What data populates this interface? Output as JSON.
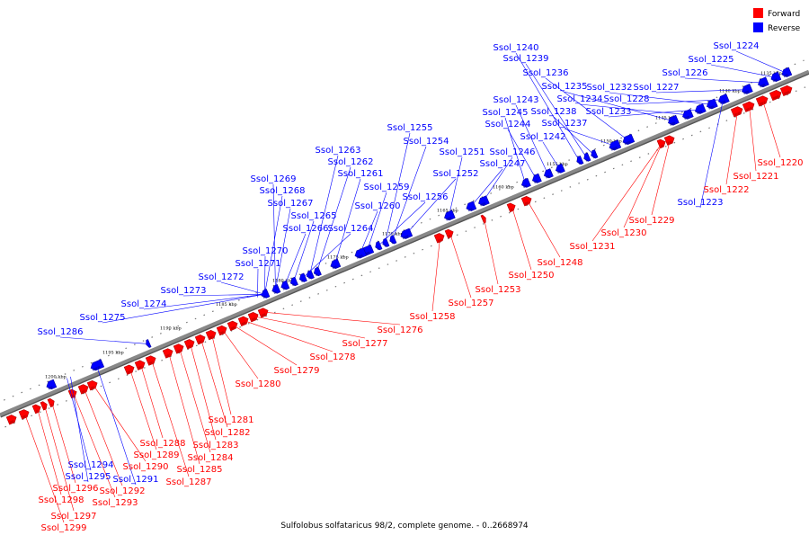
{
  "legend": {
    "forward": {
      "label": "Forward",
      "color": "#ff0000"
    },
    "reverse": {
      "label": "Reverse",
      "color": "#0000ff"
    }
  },
  "caption": "Sulfolobus solfataricus 98/2, complete genome. - 0..2668974",
  "colors": {
    "forward": "#ff0000",
    "forward_dark": "#b00000",
    "reverse": "#0000ff",
    "reverse_dark": "#0000a0",
    "backbone": "#888888",
    "backbone_dark": "#555555"
  },
  "ticks": [
    {
      "label": "1135 kbp"
    },
    {
      "label": "1140 kbp"
    },
    {
      "label": "1145 kbp"
    },
    {
      "label": "1150 kbp"
    },
    {
      "label": "1155 kbp"
    },
    {
      "label": "1160 kbp"
    },
    {
      "label": "1165 kbp"
    },
    {
      "label": "1170 kbp"
    },
    {
      "label": "1175 kbp"
    },
    {
      "label": "1180 kbp"
    },
    {
      "label": "1185 kbp"
    },
    {
      "label": "1190 kbp"
    },
    {
      "label": "1195 kbp"
    },
    {
      "label": "1200 kbp"
    }
  ],
  "genes": {
    "reverse": [
      "Ssol_1224",
      "Ssol_1225",
      "Ssol_1226",
      "Ssol_1227",
      "Ssol_1228",
      "Ssol_1232",
      "Ssol_1233",
      "Ssol_1234",
      "Ssol_1235",
      "Ssol_1236",
      "Ssol_1237",
      "Ssol_1238",
      "Ssol_1239",
      "Ssol_1240",
      "Ssol_1242",
      "Ssol_1243",
      "Ssol_1244",
      "Ssol_1245",
      "Ssol_1246",
      "Ssol_1247",
      "Ssol_1251",
      "Ssol_1252",
      "Ssol_1254",
      "Ssol_1255",
      "Ssol_1256",
      "Ssol_1259",
      "Ssol_1260",
      "Ssol_1261",
      "Ssol_1262",
      "Ssol_1263",
      "Ssol_1264",
      "Ssol_1265",
      "Ssol_1266",
      "Ssol_1267",
      "Ssol_1268",
      "Ssol_1269",
      "Ssol_1270",
      "Ssol_1271",
      "Ssol_1272",
      "Ssol_1273",
      "Ssol_1274",
      "Ssol_1275",
      "Ssol_1286",
      "Ssol_1223",
      "Ssol_1291",
      "Ssol_1294",
      "Ssol_1295"
    ],
    "forward": [
      "Ssol_1220",
      "Ssol_1221",
      "Ssol_1222",
      "Ssol_1229",
      "Ssol_1230",
      "Ssol_1231",
      "Ssol_1248",
      "Ssol_1250",
      "Ssol_1253",
      "Ssol_1257",
      "Ssol_1258",
      "Ssol_1276",
      "Ssol_1277",
      "Ssol_1278",
      "Ssol_1279",
      "Ssol_1280",
      "Ssol_1281",
      "Ssol_1282",
      "Ssol_1283",
      "Ssol_1284",
      "Ssol_1285",
      "Ssol_1287",
      "Ssol_1288",
      "Ssol_1289",
      "Ssol_1290",
      "Ssol_1292",
      "Ssol_1293",
      "Ssol_1296",
      "Ssol_1297",
      "Ssol_1298",
      "Ssol_1299"
    ]
  }
}
